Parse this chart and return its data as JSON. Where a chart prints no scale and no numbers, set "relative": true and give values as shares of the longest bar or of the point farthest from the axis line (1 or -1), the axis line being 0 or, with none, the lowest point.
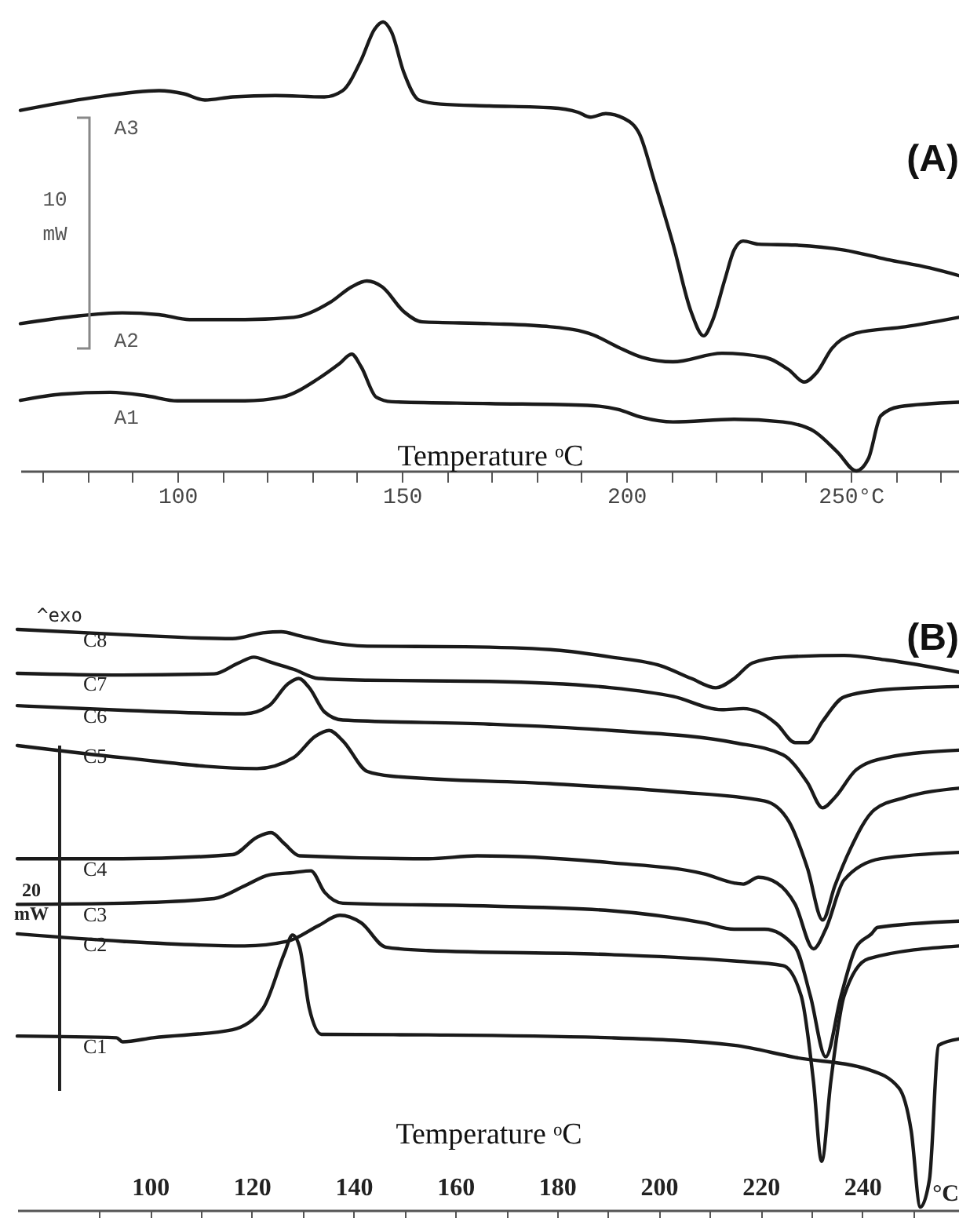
{
  "chart_data": [
    {
      "type": "line",
      "relative": true,
      "xlabel": "Temperature ᵒC",
      "xlim": [
        65,
        274.1
      ],
      "xticks": [
        {
          "value": 70,
          "label": null
        },
        {
          "value": 80,
          "label": null
        },
        {
          "value": 90,
          "label": null
        },
        100,
        {
          "value": 110,
          "label": null
        },
        {
          "value": 120,
          "label": null
        },
        {
          "value": 130,
          "label": null
        },
        {
          "value": 140,
          "label": null
        },
        150,
        {
          "value": 160,
          "label": null
        },
        {
          "value": 170,
          "label": null
        },
        {
          "value": 180,
          "label": null
        },
        {
          "value": 190,
          "label": null
        },
        200,
        {
          "value": 210,
          "label": null
        },
        {
          "value": 220,
          "label": null
        },
        {
          "value": 230,
          "label": null
        },
        {
          "value": 240,
          "label": null
        },
        {
          "value": 250,
          "label": "250°C"
        },
        {
          "value": 260,
          "label": null
        },
        {
          "value": 270,
          "label": null
        }
      ],
      "annotations": [
        "(A)",
        "10 mW"
      ],
      "series": [
        {
          "name": "A3",
          "color": "#1a1a1a",
          "x": [
            65.0,
            80.9,
            95.9,
            101.4,
            106.1,
            112.3,
            121.8,
            132.7,
            136.8,
            140.9,
            143.9,
            145.8,
            147.7,
            150.4,
            153.8,
            158.6,
            169.5,
            183.1,
            189.2,
            192.0,
            195.4,
            199.5,
            202.9,
            206.3,
            210.4,
            214.4,
            217.2,
            219.2,
            221.9,
            224.0,
            226.0,
            229.4,
            237.6,
            248.5,
            258.0,
            267.6,
            274.1
          ],
          "values": [
            0.803,
            0.831,
            0.847,
            0.84,
            0.826,
            0.833,
            0.836,
            0.833,
            0.847,
            0.915,
            0.984,
            1.0,
            0.977,
            0.888,
            0.826,
            0.817,
            0.813,
            0.809,
            0.799,
            0.788,
            0.796,
            0.785,
            0.751,
            0.643,
            0.505,
            0.355,
            0.301,
            0.335,
            0.425,
            0.492,
            0.512,
            0.505,
            0.503,
            0.492,
            0.471,
            0.452,
            0.435
          ]
        },
        {
          "name": "A2",
          "color": "#1a1a1a",
          "x": [
            65.0,
            76.8,
            87.7,
            95.9,
            102.7,
            115.0,
            125.9,
            134.1,
            138.8,
            142.2,
            145.6,
            150.4,
            154.5,
            169.5,
            183.1,
            192.6,
            198.1,
            203.5,
            210.4,
            221.3,
            230.8,
            236.2,
            239.6,
            242.4,
            245.8,
            251.2,
            262.1,
            274.1
          ],
          "values": [
            0.328,
            0.344,
            0.352,
            0.348,
            0.337,
            0.337,
            0.342,
            0.376,
            0.41,
            0.423,
            0.41,
            0.355,
            0.332,
            0.328,
            0.321,
            0.303,
            0.276,
            0.253,
            0.243,
            0.262,
            0.253,
            0.225,
            0.198,
            0.219,
            0.273,
            0.307,
            0.321,
            0.342
          ]
        },
        {
          "name": "A1",
          "color": "#1a1a1a",
          "x": [
            65.0,
            74.1,
            85.0,
            93.2,
            100.0,
            115.0,
            123.2,
            131.3,
            136.1,
            138.8,
            140.9,
            144.3,
            147.7,
            169.5,
            191.3,
            198.1,
            203.5,
            210.4,
            224.0,
            234.9,
            241.7,
            247.1,
            251.2,
            253.9,
            256.7,
            260.8,
            274.1
          ],
          "values": [
            0.157,
            0.171,
            0.175,
            0.167,
            0.156,
            0.156,
            0.164,
            0.205,
            0.239,
            0.26,
            0.232,
            0.164,
            0.154,
            0.15,
            0.146,
            0.137,
            0.119,
            0.109,
            0.115,
            0.109,
            0.089,
            0.041,
            0.0,
            0.027,
            0.123,
            0.143,
            0.153
          ]
        }
      ]
    },
    {
      "type": "line",
      "relative": true,
      "xlabel": "Temperature ᵒC",
      "xlim": [
        73.9,
        259.0
      ],
      "xticks": [
        {
          "value": 90,
          "label": null
        },
        100,
        {
          "value": 110,
          "label": null
        },
        120,
        {
          "value": 130,
          "label": null
        },
        140,
        {
          "value": 150,
          "label": null
        },
        160,
        {
          "value": 170,
          "label": null
        },
        180,
        {
          "value": 190,
          "label": null
        },
        200,
        {
          "value": 210,
          "label": null
        },
        220,
        {
          "value": 230,
          "label": null
        },
        240,
        {
          "value": 250,
          "label": null
        }
      ],
      "annotations": [
        "^exo",
        "(B)",
        "20 mW",
        "°C"
      ],
      "series": [
        {
          "name": "C8",
          "color": "#1a1a1a",
          "x": [
            73.9,
            94.6,
            116.2,
            122.2,
            125.8,
            129.4,
            134.3,
            142.7,
            161.9,
            178.7,
            190.7,
            200.4,
            206.4,
            211.2,
            214.8,
            218.4,
            224.4,
            236.4,
            244.8,
            259.0
          ],
          "values": [
            1.0,
            0.991,
            0.984,
            0.994,
            0.996,
            0.989,
            0.979,
            0.971,
            0.97,
            0.965,
            0.952,
            0.937,
            0.915,
            0.899,
            0.915,
            0.942,
            0.952,
            0.955,
            0.947,
            0.926
          ]
        },
        {
          "name": "C7",
          "color": "#1a1a1a",
          "x": [
            73.9,
            94.6,
            112.6,
            117.4,
            120.4,
            123.4,
            128.2,
            133.1,
            142.7,
            166.7,
            190.7,
            202.8,
            212.4,
            216.6,
            219.6,
            223.2,
            226.8,
            229.2,
            232.2,
            236.4,
            244.8,
            259.0
          ],
          "values": [
            0.924,
            0.921,
            0.923,
            0.942,
            0.952,
            0.944,
            0.931,
            0.915,
            0.912,
            0.91,
            0.899,
            0.884,
            0.861,
            0.863,
            0.857,
            0.836,
            0.804,
            0.804,
            0.841,
            0.883,
            0.896,
            0.901
          ]
        },
        {
          "name": "C6",
          "color": "#1a1a1a",
          "x": [
            73.9,
            94.6,
            118.6,
            123.4,
            127.0,
            129.2,
            131.3,
            134.3,
            137.9,
            166.7,
            190.7,
            214.8,
            224.4,
            229.2,
            232.2,
            234.6,
            238.8,
            244.8,
            259.0
          ],
          "values": [
            0.868,
            0.86,
            0.854,
            0.868,
            0.905,
            0.915,
            0.899,
            0.857,
            0.843,
            0.836,
            0.825,
            0.804,
            0.783,
            0.735,
            0.691,
            0.709,
            0.757,
            0.778,
            0.791
          ]
        },
        {
          "name": "C5",
          "color": "#1a1a1a",
          "x": [
            73.9,
            94.6,
            121.0,
            128.2,
            132.5,
            135.2,
            137.9,
            142.7,
            147.5,
            178.7,
            202.8,
            220.8,
            225.6,
            229.2,
            232.2,
            234.6,
            237.6,
            242.4,
            248.4,
            259.0
          ],
          "values": [
            0.799,
            0.778,
            0.759,
            0.778,
            0.815,
            0.825,
            0.807,
            0.754,
            0.746,
            0.733,
            0.719,
            0.703,
            0.667,
            0.587,
            0.497,
            0.556,
            0.619,
            0.688,
            0.709,
            0.725
          ]
        },
        {
          "name": "C4",
          "color": "#1a1a1a",
          "x": [
            73.9,
            94.6,
            116.2,
            121.0,
            123.8,
            126.4,
            129.4,
            154.7,
            164.3,
            190.7,
            208.8,
            214.8,
            216.6,
            219.6,
            223.2,
            226.8,
            230.4,
            232.8,
            236.4,
            243.6,
            259.0
          ],
          "values": [
            0.603,
            0.603,
            0.61,
            0.64,
            0.648,
            0.629,
            0.608,
            0.603,
            0.608,
            0.596,
            0.577,
            0.561,
            0.559,
            0.571,
            0.561,
            0.524,
            0.447,
            0.481,
            0.566,
            0.603,
            0.614
          ]
        },
        {
          "name": "C3",
          "color": "#1a1a1a",
          "x": [
            73.9,
            94.6,
            112.6,
            118.6,
            123.4,
            128.2,
            131.6,
            134.3,
            137.9,
            166.7,
            190.7,
            208.8,
            214.8,
            220.8,
            226.8,
            229.8,
            232.8,
            235.8,
            238.8,
            241.8,
            243.0,
            259.0
          ],
          "values": [
            0.524,
            0.526,
            0.534,
            0.556,
            0.575,
            0.579,
            0.582,
            0.545,
            0.526,
            0.521,
            0.513,
            0.492,
            0.481,
            0.481,
            0.45,
            0.365,
            0.26,
            0.365,
            0.45,
            0.473,
            0.484,
            0.495
          ]
        },
        {
          "name": "C2",
          "color": "#1a1a1a",
          "x": [
            73.9,
            94.6,
            118.6,
            127.0,
            133.1,
            137.3,
            141.5,
            146.3,
            154.7,
            190.7,
            214.8,
            224.4,
            228.0,
            230.4,
            232.0,
            233.8,
            236.4,
            241.2,
            259.0
          ],
          "values": [
            0.473,
            0.46,
            0.452,
            0.46,
            0.487,
            0.505,
            0.492,
            0.45,
            0.444,
            0.437,
            0.426,
            0.418,
            0.365,
            0.217,
            0.079,
            0.217,
            0.365,
            0.43,
            0.452
          ]
        },
        {
          "name": "C1",
          "color": "#1a1a1a",
          "x": [
            73.9,
            93.4,
            94.6,
            100.6,
            116.2,
            122.2,
            126.4,
            128.0,
            129.4,
            131.3,
            133.7,
            154.7,
            190.7,
            214.8,
            226.8,
            241.2,
            247.2,
            249.6,
            251.4,
            253.2,
            255.0,
            259.0
          ],
          "values": [
            0.296,
            0.293,
            0.286,
            0.293,
            0.307,
            0.344,
            0.439,
            0.471,
            0.45,
            0.344,
            0.299,
            0.298,
            0.293,
            0.28,
            0.259,
            0.238,
            0.206,
            0.132,
            0.0,
            0.048,
            0.28,
            0.291
          ]
        }
      ]
    }
  ]
}
